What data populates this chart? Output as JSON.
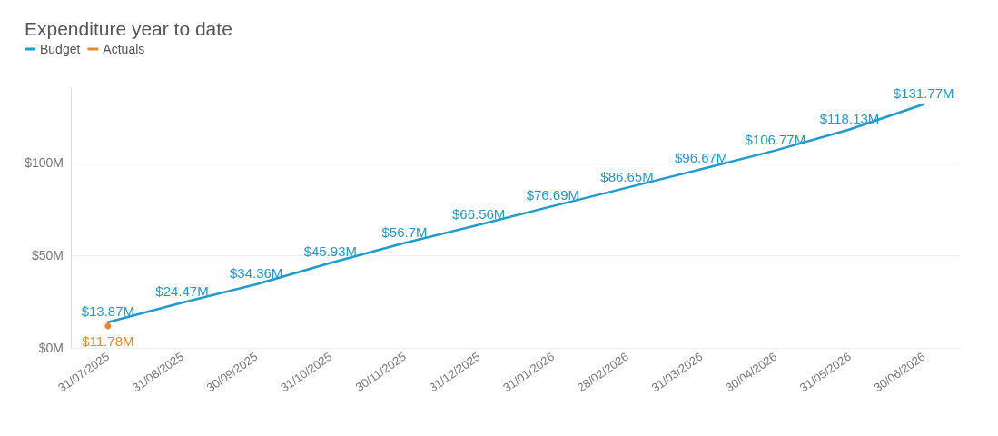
{
  "chart_data": {
    "type": "line",
    "title": "Expenditure year to date",
    "categories": [
      "31/07/2025",
      "31/08/2025",
      "30/09/2025",
      "31/10/2025",
      "30/11/2025",
      "31/12/2025",
      "31/01/2026",
      "28/02/2026",
      "31/03/2026",
      "30/04/2026",
      "31/05/2026",
      "30/06/2026"
    ],
    "series": [
      {
        "name": "Budget",
        "color": "#1f9bcf",
        "values": [
          13.87,
          24.47,
          34.36,
          45.93,
          56.7,
          66.56,
          76.69,
          86.65,
          96.67,
          106.77,
          118.13,
          131.77
        ],
        "value_labels": [
          "$13.87M",
          "$24.47M",
          "$34.36M",
          "$45.93M",
          "$56.7M",
          "$66.56M",
          "$76.69M",
          "$86.65M",
          "$96.67M",
          "$106.77M",
          "$118.13M",
          "$131.77M"
        ]
      },
      {
        "name": "Actuals",
        "color": "#e8892b",
        "values": [
          11.78,
          null,
          null,
          null,
          null,
          null,
          null,
          null,
          null,
          null,
          null,
          null
        ],
        "value_labels": [
          "$11.78M",
          null,
          null,
          null,
          null,
          null,
          null,
          null,
          null,
          null,
          null,
          null
        ]
      }
    ],
    "ylim": [
      0,
      140
    ],
    "yticks": [
      {
        "value": 0,
        "label": "$0M"
      },
      {
        "value": 50,
        "label": "$50M"
      },
      {
        "value": 100,
        "label": "$100M"
      }
    ],
    "grid": "y",
    "legend": "top left",
    "marker": "none",
    "line_style": "solid"
  }
}
